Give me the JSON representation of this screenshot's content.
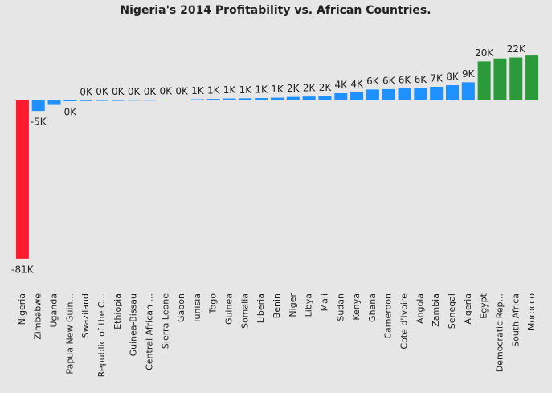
{
  "chart_data": {
    "type": "bar",
    "title": "Nigeria's 2014 Profitability vs. African Countries.",
    "categories": [
      "Nigeria",
      "Zimbabwe",
      "Uganda",
      "Papua New Guin...",
      "Swaziland",
      "Republic of the C...",
      "Ethiopia",
      "Guinea-Bissau",
      "Central African ...",
      "Sierra Leone",
      "Gabon",
      "Tunisia",
      "Togo",
      "Guinea",
      "Somalia",
      "Liberia",
      "Benin",
      "Niger",
      "Libya",
      "Mali",
      "Sudan",
      "Kenya",
      "Ghana",
      "Cameroon",
      "Cote d'Ivoire",
      "Angola",
      "Zambia",
      "Senegal",
      "Algeria",
      "Egypt",
      "Democratic Rep...",
      "South Africa",
      "Morocco"
    ],
    "values": [
      -81,
      -5.4,
      -2.3,
      -0.4,
      0.1,
      0.2,
      0.2,
      0.3,
      0.3,
      0.4,
      0.4,
      0.6,
      0.8,
      1.0,
      1.1,
      1.2,
      1.4,
      1.8,
      2.0,
      2.3,
      3.7,
      4.2,
      5.6,
      5.8,
      6.2,
      6.4,
      7.0,
      7.8,
      9.3,
      20.0,
      21.5,
      22.0,
      23.0
    ],
    "value_labels": [
      "-81K",
      "-5K",
      null,
      "0K",
      "0K",
      "0K",
      "0K",
      "0K",
      "0K",
      "0K",
      "0K",
      "1K",
      "1K",
      "1K",
      "1K",
      "1K",
      "1K",
      "2K",
      "2K",
      "2K",
      "4K",
      "4K",
      "6K",
      "6K",
      "6K",
      "6K",
      "7K",
      "8K",
      "9K",
      "20K",
      null,
      "22K",
      null
    ],
    "colors": [
      "#ff1a2e",
      "#1e90ff",
      "#1e90ff",
      "#1e90ff",
      "#1e90ff",
      "#1e90ff",
      "#1e90ff",
      "#1e90ff",
      "#1e90ff",
      "#1e90ff",
      "#1e90ff",
      "#1e90ff",
      "#1e90ff",
      "#1e90ff",
      "#1e90ff",
      "#1e90ff",
      "#1e90ff",
      "#1e90ff",
      "#1e90ff",
      "#1e90ff",
      "#1e90ff",
      "#1e90ff",
      "#1e90ff",
      "#1e90ff",
      "#1e90ff",
      "#1e90ff",
      "#1e90ff",
      "#1e90ff",
      "#1e90ff",
      "#2a9a3a",
      "#2a9a3a",
      "#2a9a3a",
      "#2a9a3a"
    ]
  }
}
